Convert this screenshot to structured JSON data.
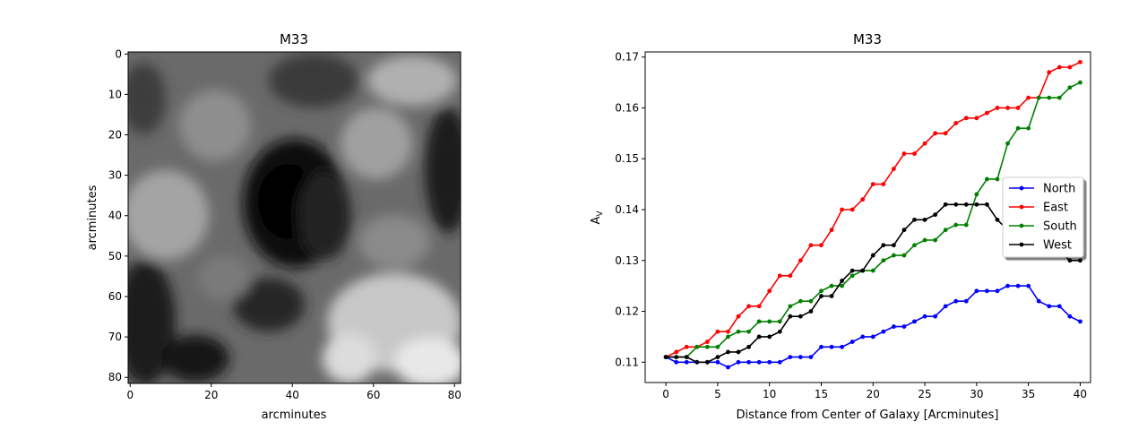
{
  "chart_data": [
    {
      "type": "heatmap",
      "title": "M33",
      "xlabel": "arcminutes",
      "ylabel": "arcminutes",
      "xlim": [
        0,
        81
      ],
      "ylim": [
        81,
        0
      ],
      "colormap": "gray",
      "x_ticks": [
        "0",
        "20",
        "40",
        "60",
        "80"
      ],
      "y_ticks": [
        "0",
        "10",
        "20",
        "30",
        "40",
        "50",
        "60",
        "70",
        "80"
      ]
    },
    {
      "type": "line",
      "title": "M33",
      "xlabel": "Distance from Center of Galaxy [Arcminutes]",
      "ylabel_main": "A",
      "ylabel_sub": "V",
      "xlim": [
        -2,
        41
      ],
      "ylim": [
        0.106,
        0.171
      ],
      "x_ticks": [
        "0",
        "5",
        "10",
        "15",
        "20",
        "25",
        "30",
        "35",
        "40"
      ],
      "y_ticks": [
        "0.11",
        "0.12",
        "0.13",
        "0.14",
        "0.15",
        "0.16",
        "0.17"
      ],
      "legend_position": "right",
      "x": [
        0,
        1,
        2,
        3,
        4,
        5,
        6,
        7,
        8,
        9,
        10,
        11,
        12,
        13,
        14,
        15,
        16,
        17,
        18,
        19,
        20,
        21,
        22,
        23,
        24,
        25,
        26,
        27,
        28,
        29,
        30,
        31,
        32,
        33,
        34,
        35,
        36,
        37,
        38,
        39,
        40
      ],
      "series": [
        {
          "name": "North",
          "color": "#0000ff",
          "values": [
            0.111,
            0.11,
            0.11,
            0.11,
            0.11,
            0.11,
            0.109,
            0.11,
            0.11,
            0.11,
            0.11,
            0.11,
            0.111,
            0.111,
            0.111,
            0.113,
            0.113,
            0.113,
            0.114,
            0.115,
            0.115,
            0.116,
            0.117,
            0.117,
            0.118,
            0.119,
            0.119,
            0.121,
            0.122,
            0.122,
            0.124,
            0.124,
            0.124,
            0.125,
            0.125,
            0.125,
            0.122,
            0.121,
            0.121,
            0.119,
            0.118
          ]
        },
        {
          "name": "East",
          "color": "#ff0000",
          "values": [
            0.111,
            0.112,
            0.113,
            0.113,
            0.114,
            0.116,
            0.116,
            0.119,
            0.121,
            0.121,
            0.124,
            0.127,
            0.127,
            0.13,
            0.133,
            0.133,
            0.136,
            0.14,
            0.14,
            0.142,
            0.145,
            0.145,
            0.148,
            0.151,
            0.151,
            0.153,
            0.155,
            0.155,
            0.157,
            0.158,
            0.158,
            0.159,
            0.16,
            0.16,
            0.16,
            0.162,
            0.162,
            0.167,
            0.168,
            0.168,
            0.169
          ]
        },
        {
          "name": "South",
          "color": "#008000",
          "values": [
            0.111,
            0.111,
            0.111,
            0.113,
            0.113,
            0.113,
            0.115,
            0.116,
            0.116,
            0.118,
            0.118,
            0.118,
            0.121,
            0.122,
            0.122,
            0.124,
            0.125,
            0.125,
            0.127,
            0.128,
            0.128,
            0.13,
            0.131,
            0.131,
            0.133,
            0.134,
            0.134,
            0.136,
            0.137,
            0.137,
            0.143,
            0.146,
            0.146,
            0.153,
            0.156,
            0.156,
            0.162,
            0.162,
            0.162,
            0.164,
            0.165
          ]
        },
        {
          "name": "West",
          "color": "#000000",
          "values": [
            0.111,
            0.111,
            0.111,
            0.11,
            0.11,
            0.111,
            0.112,
            0.112,
            0.113,
            0.115,
            0.115,
            0.116,
            0.119,
            0.119,
            0.12,
            0.123,
            0.123,
            0.126,
            0.128,
            0.128,
            0.131,
            0.133,
            0.133,
            0.136,
            0.138,
            0.138,
            0.139,
            0.141,
            0.141,
            0.141,
            0.141,
            0.141,
            0.138,
            0.136,
            0.136,
            0.136,
            0.134,
            0.133,
            0.132,
            0.13,
            0.13
          ]
        }
      ]
    }
  ]
}
